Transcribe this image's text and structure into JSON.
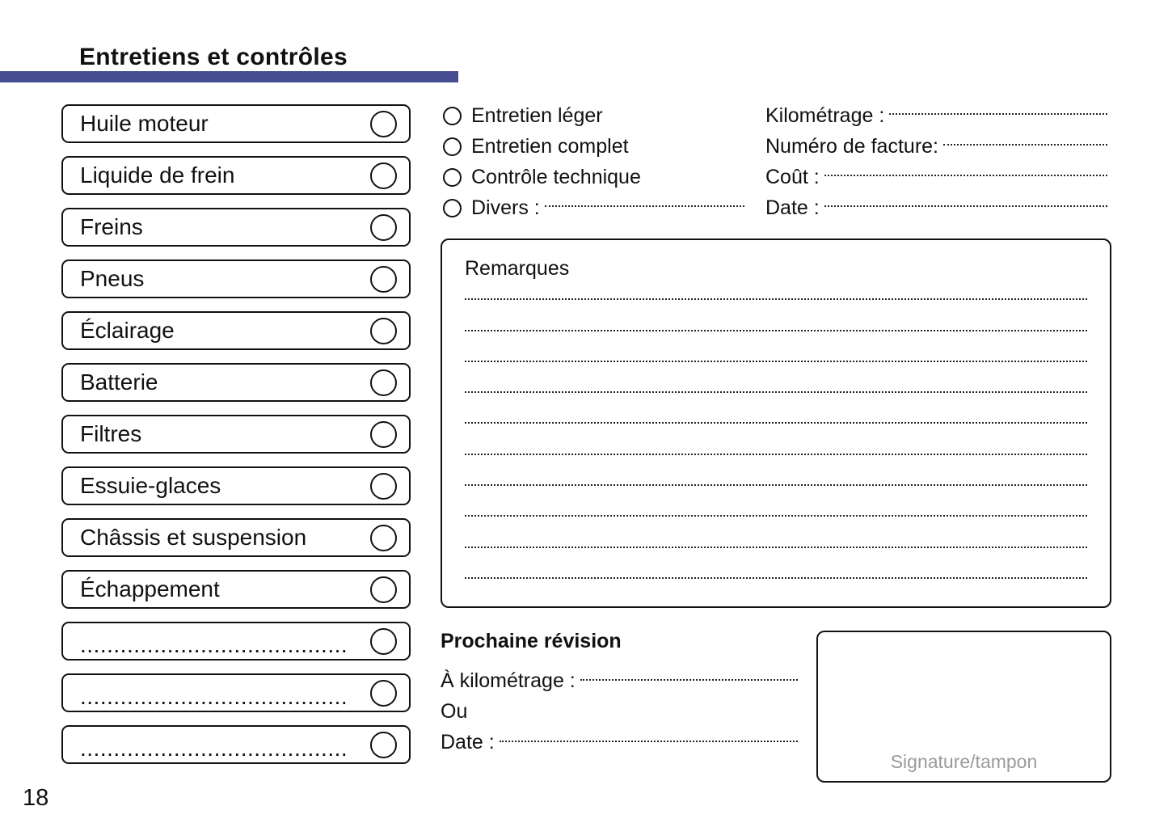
{
  "page": {
    "title": "Entretiens et contrôles",
    "page_number": "18"
  },
  "colors": {
    "accent_bar": "#464D90",
    "signature_text": "#9a9a9a"
  },
  "checklist": {
    "items": [
      "Huile moteur",
      "Liquide de frein",
      "Freins",
      "Pneus",
      "Éclairage",
      "Batterie",
      "Filtres",
      "Essuie-glaces",
      "Châssis et suspension",
      "Échappement",
      "........................................",
      "........................................",
      "........................................"
    ]
  },
  "service_type": {
    "options": [
      "Entretien léger",
      "Entretien complet",
      "Contrôle technique",
      "Divers :"
    ]
  },
  "record": {
    "fields": [
      "Kilométrage :",
      "Numéro de facture:",
      "Coût :",
      "Date :"
    ]
  },
  "remarks": {
    "title": "Remarques",
    "blank_lines": 10
  },
  "next_service": {
    "title": "Prochaine révision",
    "fields": [
      "À kilométrage :",
      "Ou",
      "Date :"
    ]
  },
  "signature": {
    "label": "Signature/tampon"
  }
}
